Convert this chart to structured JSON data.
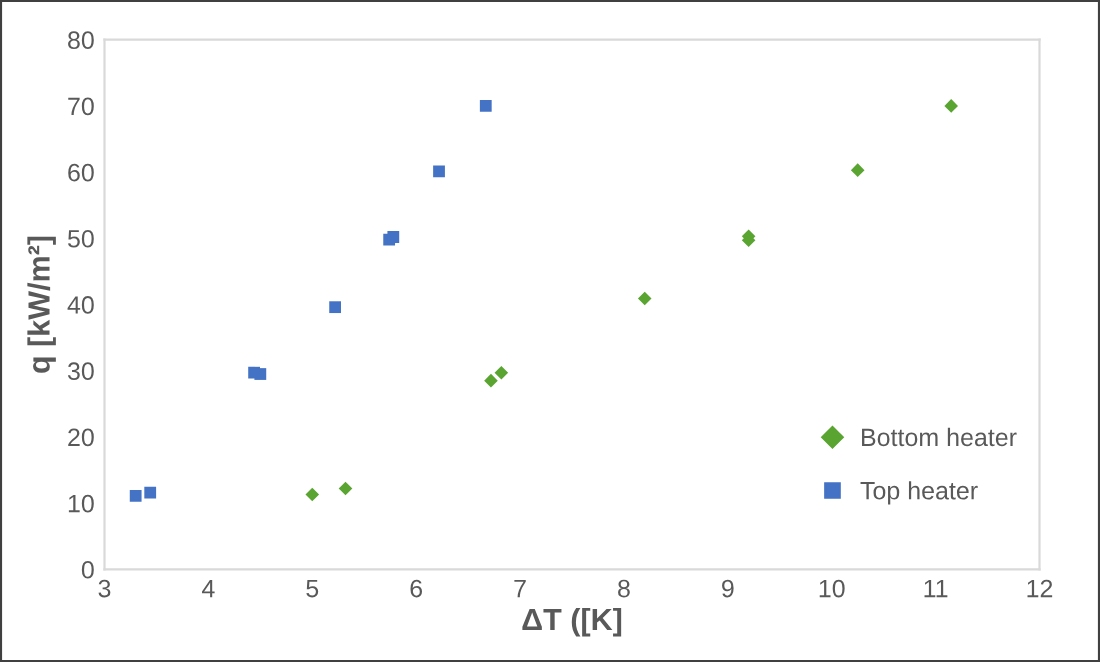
{
  "chart_data": {
    "type": "scatter",
    "xlabel": "ΔT ([K]",
    "ylabel": "q [kW/m²]",
    "xlim": [
      3,
      12
    ],
    "xticks": [
      3,
      4,
      5,
      6,
      7,
      8,
      9,
      10,
      11,
      12
    ],
    "ylim": [
      0,
      80
    ],
    "yticks": [
      0,
      10,
      20,
      30,
      40,
      50,
      60,
      70,
      80
    ],
    "grid": false,
    "legend": "bottom right",
    "series": [
      {
        "name": "Bottom heater",
        "color": "#5aa532",
        "marker": "diamond",
        "x": [
          5.0,
          5.32,
          6.72,
          6.82,
          8.2,
          9.2,
          9.2,
          10.25,
          11.15
        ],
        "values": [
          11.3,
          12.2,
          28.5,
          29.7,
          40.9,
          50.3,
          49.7,
          60.3,
          70.0
        ]
      },
      {
        "name": "Top heater",
        "color": "#4472c4",
        "marker": "square",
        "x": [
          3.3,
          3.44,
          4.44,
          4.5,
          5.22,
          5.74,
          5.78,
          6.22,
          6.67
        ],
        "values": [
          11.1,
          11.6,
          29.7,
          29.5,
          39.6,
          49.8,
          50.2,
          60.1,
          70.0
        ]
      }
    ]
  }
}
